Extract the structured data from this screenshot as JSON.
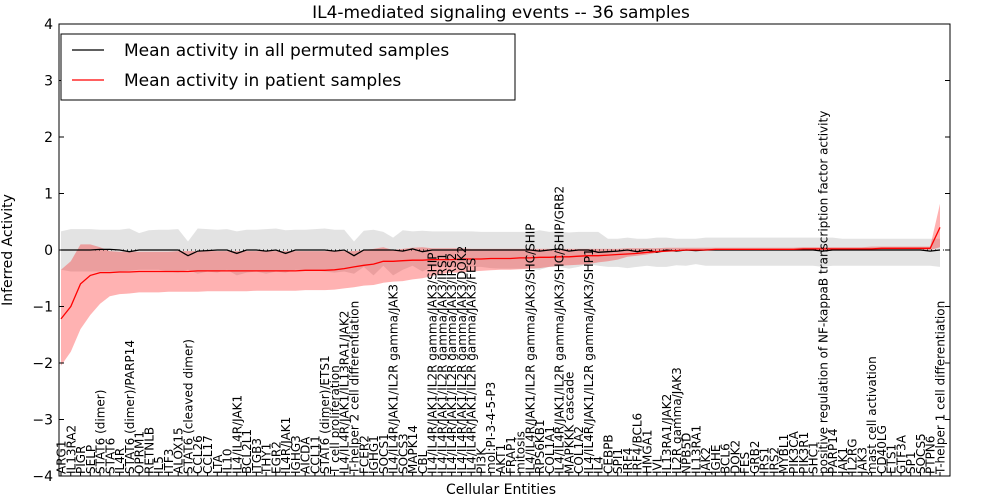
{
  "chart_data": {
    "type": "line",
    "title": "IL4-mediated signaling events -- 36 samples",
    "xlabel": "Cellular Entities",
    "ylabel": "Inferred Activity",
    "ylim": [
      -4,
      4
    ],
    "yticks": [
      -4,
      -3,
      -2,
      -1,
      0,
      1,
      2,
      3,
      4
    ],
    "grid": false,
    "legend": {
      "placement": "top-left",
      "entries": [
        {
          "label": "Mean activity in all permuted samples",
          "color": "#000000"
        },
        {
          "label": "Mean activity in patient samples",
          "color": "#ff0000"
        }
      ]
    },
    "categories": [
      "ARG1",
      "IL13RA2",
      "PIGR",
      "SELP",
      "STAT6 (dimer)",
      "STAT6",
      "IL4R",
      "STAT6 (dimer)/PARP14",
      "OPRM1",
      "RETNLB",
      "IL5",
      "ITF3",
      "ALOX15",
      "STAT6 (cleaved dimer)",
      "CCL26",
      "CCL17",
      "LTA",
      "IL10",
      "IL4/IL4R/JAK1",
      "BCL2L1",
      "ITGB3",
      "THY1",
      "EGR2",
      "IL4R/JAK1",
      "IGHG3",
      "AICDA",
      "CCL11",
      "STAT6 (dimer)/ETS1",
      "T cell proliferation",
      "IL4/IL4R/JAK1/IL13RA1/JAK2",
      "T-helper 2 cell differentiation",
      "FCER2",
      "IGHG1",
      "SOCS1",
      "IL4/IL4R/JAK1/IL2R gamma/JAK3",
      "SOCS3",
      "MAPK14",
      "CBL",
      "IL4/IL4R/JAK1/IL2R gamma/JAK3/SHIP",
      "IL4/IL4R/JAK1/IL2R gamma/JAK3/IRS1",
      "IL4/IL4R/JAK1/IL2R gamma/JAK3/IRS2",
      "IL4/IL4R/JAK1/IL2R gamma/JAK3/DOK2",
      "IL4/IL4R/JAK1/IL2R gamma/JAK3/FES",
      "PI3K",
      "mol:PI-3-4-5-P3",
      "AKT1",
      "FRAP1",
      "mitosis",
      "IL4/IL4R/JAK1/IL2R gamma/JAK3/SHC/SHIP",
      "RPS6KB1",
      "COL1A1",
      "IL4/IL4R/JAK1/IL2R gamma/JAK3/SHC/SHIP/GRB2",
      "MAPKKK cascade",
      "COL1A2",
      "IL4/IL4R/JAK1/IL2R gamma/JAK3/SHP1",
      "IL4",
      "CEBPB",
      "SPI1",
      "IRF4",
      "IRF4/BCL6",
      "HMGA1",
      "IVL",
      "IL13RA1/JAK2",
      "IL2R gamma/JAK3",
      "NPB5D",
      "IL13RA1",
      "JAK2",
      "IGHE",
      "BCL6",
      "DOK2",
      "FES",
      "GRB2",
      "IRS1",
      "IRS2",
      "MYBL1",
      "PIK3CA",
      "PIK3R1",
      "SHC1",
      "positive regulation of NF-kappaB transcription factor activity",
      "PARP14",
      "JAK1",
      "IL2RG",
      "JAK3",
      "mast cell activation",
      "CD40LG",
      "ETS1",
      "GTF3A",
      "SP1",
      "SOCS5",
      "PTPN6",
      "T-helper 1 cell differentiation"
    ],
    "series": [
      {
        "name": "Mean activity in all permuted samples",
        "color": "#000000",
        "values": [
          0.0,
          0.0,
          0.0,
          0.0,
          0.01,
          0.01,
          0.0,
          -0.03,
          0.0,
          0.0,
          0.0,
          0.0,
          0.0,
          -0.1,
          -0.02,
          -0.01,
          0.0,
          0.0,
          -0.06,
          0.0,
          0.0,
          -0.02,
          0.0,
          -0.06,
          0.0,
          0.0,
          0.0,
          0.0,
          -0.02,
          0.0,
          -0.1,
          0.0,
          0.0,
          0.0,
          0.0,
          -0.02,
          0.02,
          -0.03,
          0.0,
          0.0,
          0.0,
          0.0,
          0.0,
          0.0,
          0.0,
          0.0,
          0.0,
          0.0,
          0.0,
          -0.02,
          0.0,
          0.02,
          -0.02,
          0.0,
          0.0,
          -0.04,
          -0.03,
          -0.02,
          0.0,
          -0.03,
          0.0,
          -0.04,
          0.0,
          -0.02,
          0.0,
          -0.01,
          0.0,
          0.0,
          0.0,
          0.0,
          0.0,
          0.0,
          0.0,
          0.0,
          0.0,
          0.0,
          0.0,
          0.0,
          -0.02,
          0.0,
          0.0,
          0.0,
          0.0,
          0.0,
          0.0,
          0.0,
          0.0,
          0.0,
          0.0,
          -0.02,
          0.0
        ],
        "band_lower": [
          -0.35,
          -0.38,
          -0.38,
          -0.38,
          -0.38,
          -0.38,
          -0.38,
          -0.37,
          -0.35,
          -0.35,
          -0.35,
          -0.38,
          -0.4,
          -0.35,
          -0.42,
          -0.38,
          -0.4,
          -0.35,
          -0.45,
          -0.4,
          -0.38,
          -0.42,
          -0.38,
          -0.4,
          -0.35,
          -0.36,
          -0.36,
          -0.38,
          -0.4,
          -0.38,
          -0.42,
          -0.3,
          -0.45,
          -0.28,
          -0.45,
          -0.35,
          -0.28,
          -0.38,
          -0.3,
          -0.3,
          -0.3,
          -0.3,
          -0.3,
          -0.3,
          -0.32,
          -0.33,
          -0.33,
          -0.33,
          -0.33,
          -0.35,
          -0.3,
          -0.3,
          -0.33,
          -0.3,
          -0.25,
          -0.28,
          -0.3,
          -0.3,
          -0.32,
          -0.3,
          -0.28,
          -0.3,
          -0.3,
          -0.27,
          -0.28,
          -0.25,
          -0.28,
          -0.28,
          -0.28,
          -0.28,
          -0.28,
          -0.28,
          -0.28,
          -0.28,
          -0.28,
          -0.28,
          -0.28,
          -0.28,
          -0.3,
          -0.28,
          -0.28,
          -0.28,
          -0.28,
          -0.28,
          -0.28,
          -0.28,
          -0.28,
          -0.28,
          -0.28,
          -0.28,
          -0.3
        ],
        "band_upper": [
          0.33,
          0.37,
          0.37,
          0.37,
          0.36,
          0.36,
          0.36,
          0.38,
          0.3,
          0.35,
          0.36,
          0.36,
          0.37,
          0.15,
          0.38,
          0.37,
          0.36,
          0.37,
          0.33,
          0.36,
          0.36,
          0.37,
          0.38,
          0.35,
          0.36,
          0.36,
          0.37,
          0.38,
          0.36,
          0.36,
          0.15,
          0.34,
          0.36,
          0.32,
          0.22,
          0.35,
          0.33,
          0.34,
          0.33,
          0.33,
          0.33,
          0.33,
          0.33,
          0.32,
          0.32,
          0.32,
          0.32,
          0.32,
          0.32,
          0.35,
          0.32,
          0.33,
          0.31,
          0.32,
          0.32,
          0.32,
          0.2,
          0.2,
          0.22,
          0.2,
          0.2,
          0.22,
          0.22,
          0.2,
          0.2,
          0.2,
          0.22,
          0.22,
          0.22,
          0.22,
          0.22,
          0.22,
          0.22,
          0.22,
          0.22,
          0.22,
          0.22,
          0.22,
          0.22,
          0.22,
          0.2,
          0.2,
          0.2,
          0.2,
          0.2,
          0.2,
          0.2,
          0.2,
          0.2,
          0.2,
          0.2
        ]
      },
      {
        "name": "Mean activity in patient samples",
        "color": "#ff0000",
        "values": [
          -1.22,
          -1.0,
          -0.6,
          -0.45,
          -0.4,
          -0.4,
          -0.39,
          -0.39,
          -0.38,
          -0.38,
          -0.38,
          -0.38,
          -0.38,
          -0.38,
          -0.37,
          -0.37,
          -0.37,
          -0.37,
          -0.37,
          -0.37,
          -0.37,
          -0.37,
          -0.37,
          -0.37,
          -0.37,
          -0.36,
          -0.36,
          -0.36,
          -0.35,
          -0.33,
          -0.3,
          -0.27,
          -0.25,
          -0.2,
          -0.2,
          -0.19,
          -0.18,
          -0.18,
          -0.17,
          -0.17,
          -0.17,
          -0.16,
          -0.16,
          -0.16,
          -0.15,
          -0.15,
          -0.15,
          -0.14,
          -0.14,
          -0.13,
          -0.13,
          -0.12,
          -0.12,
          -0.11,
          -0.1,
          -0.1,
          -0.09,
          -0.08,
          -0.07,
          -0.06,
          -0.04,
          -0.03,
          -0.02,
          -0.01,
          0.0,
          0.0,
          0.0,
          0.01,
          0.01,
          0.01,
          0.01,
          0.01,
          0.01,
          0.01,
          0.01,
          0.01,
          0.02,
          0.02,
          0.02,
          0.02,
          0.02,
          0.02,
          0.02,
          0.02,
          0.03,
          0.03,
          0.03,
          0.03,
          0.03,
          0.03,
          0.4
        ],
        "band_lower": [
          -2.05,
          -1.8,
          -1.4,
          -1.15,
          -0.95,
          -0.82,
          -0.78,
          -0.77,
          -0.75,
          -0.75,
          -0.75,
          -0.74,
          -0.74,
          -0.74,
          -0.74,
          -0.73,
          -0.73,
          -0.73,
          -0.73,
          -0.73,
          -0.72,
          -0.72,
          -0.72,
          -0.72,
          -0.72,
          -0.71,
          -0.71,
          -0.71,
          -0.7,
          -0.68,
          -0.66,
          -0.63,
          -0.62,
          -0.58,
          -0.56,
          -0.55,
          -0.52,
          -0.5,
          -0.46,
          -0.42,
          -0.4,
          -0.4,
          -0.38,
          -0.37,
          -0.36,
          -0.35,
          -0.35,
          -0.34,
          -0.33,
          -0.32,
          -0.3,
          -0.28,
          -0.27,
          -0.26,
          -0.25,
          -0.22,
          -0.2,
          -0.17,
          -0.12,
          -0.1,
          -0.08,
          -0.05,
          -0.03,
          -0.01,
          -0.01,
          0.0,
          0.0,
          0.0,
          0.0,
          0.0,
          0.0,
          0.0,
          0.0,
          0.0,
          0.0,
          0.0,
          0.0,
          0.0,
          0.0,
          0.0,
          0.0,
          0.0,
          0.0,
          0.0,
          0.0,
          0.0,
          0.0,
          0.0,
          0.0,
          0.0,
          0.05
        ],
        "band_upper": [
          -0.35,
          -0.2,
          0.1,
          0.1,
          0.05,
          -0.02,
          -0.03,
          -0.03,
          -0.03,
          -0.03,
          -0.03,
          -0.03,
          -0.02,
          -0.02,
          -0.02,
          -0.02,
          -0.02,
          -0.02,
          -0.02,
          -0.02,
          -0.02,
          -0.02,
          -0.02,
          -0.02,
          -0.02,
          -0.02,
          -0.02,
          -0.02,
          -0.02,
          -0.02,
          -0.02,
          0.0,
          0.02,
          0.05,
          0.0,
          0.02,
          0.04,
          0.05,
          0.03,
          0.03,
          0.03,
          0.03,
          0.02,
          0.02,
          0.02,
          0.02,
          0.02,
          0.02,
          0.02,
          0.02,
          0.02,
          0.02,
          0.02,
          0.02,
          0.02,
          0.02,
          0.02,
          0.02,
          0.03,
          0.03,
          0.03,
          0.03,
          0.04,
          0.04,
          0.04,
          0.04,
          0.04,
          0.04,
          0.04,
          0.04,
          0.04,
          0.04,
          0.04,
          0.04,
          0.04,
          0.04,
          0.05,
          0.05,
          0.05,
          0.05,
          0.05,
          0.05,
          0.05,
          0.06,
          0.06,
          0.06,
          0.06,
          0.06,
          0.06,
          0.06,
          0.82
        ]
      }
    ]
  }
}
